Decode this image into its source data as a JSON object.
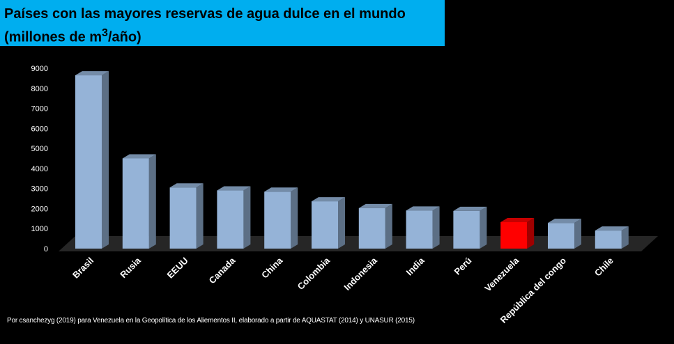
{
  "title": {
    "line1": "Países con las mayores reservas de agua dulce en el mundo",
    "line2_prefix": "(millones de m",
    "line2_sup": "3",
    "line2_suffix": "/año)"
  },
  "source_note": "Por csanchezyg (2019)  para Venezuela  en la Geopolítica  de los Aliementos II, elaborado   a partir  de AQUASTAT (2014)  y UNASUR (2015)",
  "colors": {
    "background": "#000000",
    "title_bar": "#00aeef",
    "bar": "#95b3d7",
    "highlight_bar": "#ff0000",
    "floor": "#262626",
    "text": "#ffffff"
  },
  "chart_data": {
    "type": "bar",
    "title": "Países con las mayores reservas de agua dulce en el mundo (millones de m3/año)",
    "xlabel": "",
    "ylabel": "",
    "ylim": [
      0,
      9000
    ],
    "yticks": [
      0,
      1000,
      2000,
      3000,
      4000,
      5000,
      6000,
      7000,
      8000,
      9000
    ],
    "categories": [
      "Brasil",
      "Rusia",
      "EEUU",
      "Canada",
      "China",
      "Colombia",
      "Indonesia",
      "India",
      "Perú",
      "Venezuela",
      "República del congo",
      "Chile"
    ],
    "values": [
      8650,
      4500,
      3050,
      2900,
      2840,
      2360,
      2020,
      1900,
      1880,
      1320,
      1280,
      900
    ],
    "highlight": "Venezuela",
    "style": "3d-columns"
  }
}
